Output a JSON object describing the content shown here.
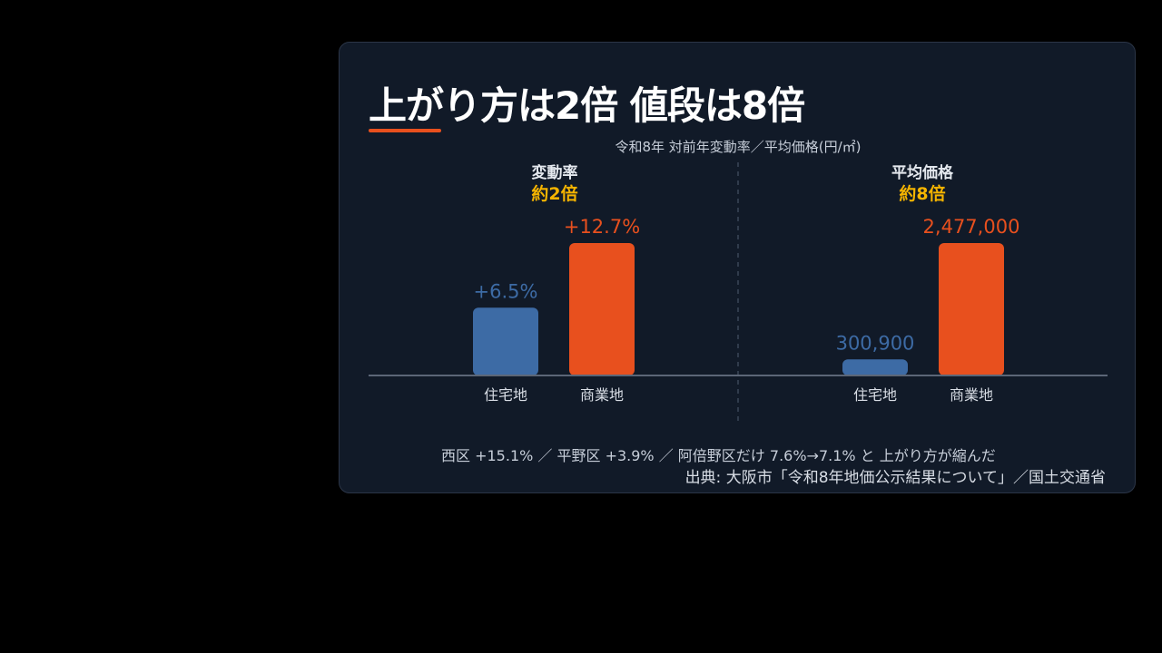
{
  "title": "上がり方は2倍 値段は8倍",
  "subtitle": "令和8年 対前年変動率／平均価格(円/㎡)",
  "note": "西区 +15.1% ／ 平野区 +3.9% ／ 阿倍野区だけ 7.6%→7.1% と 上がり方が縮んだ",
  "source": "出典: 大阪市「令和8年地価公示結果について」／国土交通省",
  "colors": {
    "residential": "#3d6ba5",
    "commercial": "#e8501e",
    "ratio_highlight": "#f5b400",
    "background": "#111a28"
  },
  "chart_data": [
    {
      "type": "bar",
      "panel_title": "変動率",
      "ratio_label": "約2倍",
      "categories": [
        "住宅地",
        "商業地"
      ],
      "values": [
        6.5,
        12.7
      ],
      "value_labels": [
        "+6.5%",
        "+12.7%"
      ],
      "ylim": [
        0,
        12.7
      ]
    },
    {
      "type": "bar",
      "panel_title": "平均価格",
      "ratio_label": "約8倍",
      "categories": [
        "住宅地",
        "商業地"
      ],
      "values": [
        300900,
        2477000
      ],
      "value_labels": [
        "300,900",
        "2,477,000"
      ],
      "ylim": [
        0,
        2477000
      ]
    }
  ]
}
